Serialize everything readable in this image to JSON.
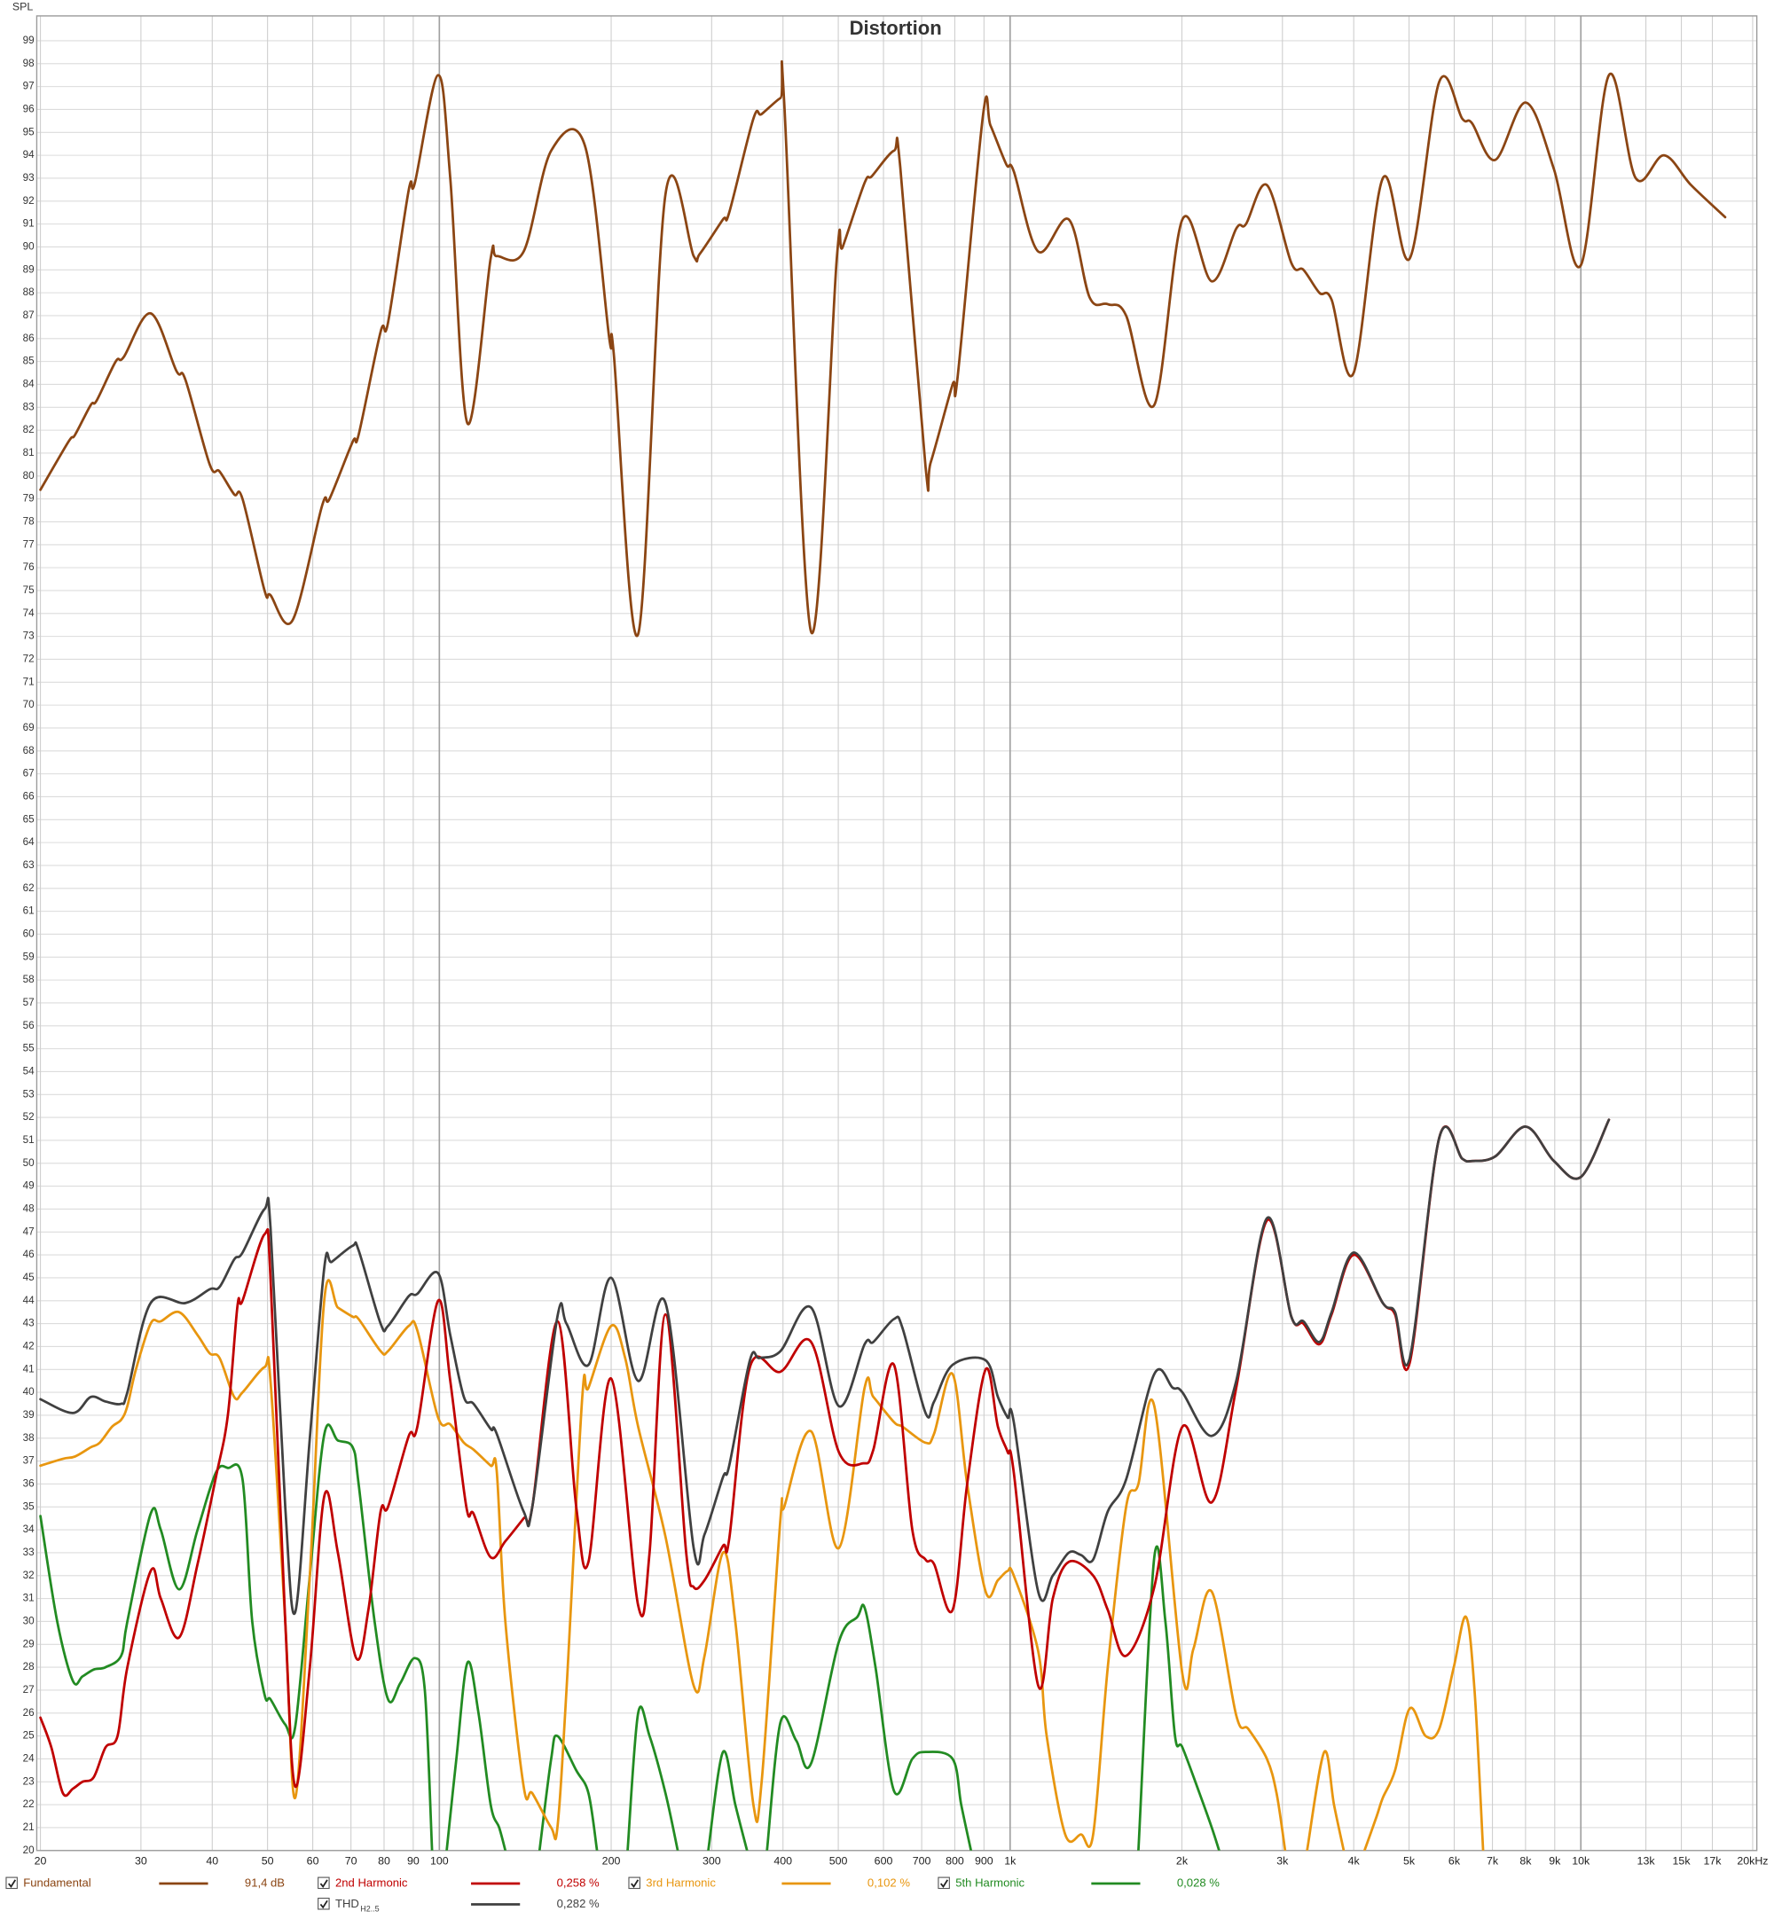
{
  "chart_data": {
    "type": "line",
    "title": "Distortion",
    "y_label": "SPL",
    "x_scale": "log",
    "grid": true,
    "xlim": [
      20,
      20000
    ],
    "ylim": [
      20,
      100
    ],
    "xticks": [
      20,
      30,
      40,
      50,
      60,
      70,
      80,
      90,
      100,
      200,
      300,
      400,
      500,
      600,
      700,
      800,
      900,
      {
        "value": 1000,
        "label": "1k"
      },
      {
        "value": 2000,
        "label": "2k"
      },
      {
        "value": 3000,
        "label": "3k"
      },
      {
        "value": 4000,
        "label": "4k"
      },
      {
        "value": 5000,
        "label": "5k"
      },
      {
        "value": 6000,
        "label": "6k"
      },
      {
        "value": 7000,
        "label": "7k"
      },
      {
        "value": 8000,
        "label": "8k"
      },
      {
        "value": 9000,
        "label": "9k"
      },
      {
        "value": 10000,
        "label": "10k"
      },
      {
        "value": 13000,
        "label": "13k"
      },
      {
        "value": 15000,
        "label": "15k"
      },
      {
        "value": 17000,
        "label": "17k"
      },
      {
        "value": 20000,
        "label": "20kHz"
      }
    ],
    "yticks": [
      20,
      21,
      22,
      23,
      24,
      25,
      26,
      27,
      28,
      29,
      30,
      31,
      32,
      33,
      34,
      35,
      36,
      37,
      38,
      39,
      40,
      41,
      42,
      43,
      44,
      45,
      46,
      47,
      48,
      49,
      50,
      51,
      52,
      53,
      54,
      55,
      56,
      57,
      58,
      59,
      60,
      61,
      62,
      63,
      64,
      65,
      66,
      67,
      68,
      69,
      70,
      71,
      72,
      73,
      74,
      75,
      76,
      77,
      78,
      79,
      80,
      81,
      82,
      83,
      84,
      85,
      86,
      87,
      88,
      89,
      90,
      91,
      92,
      93,
      94,
      95,
      96,
      97,
      98,
      99
    ],
    "series": [
      {
        "name": "Fundamental",
        "color": "#8b4513",
        "legend_value": "91,4 dB",
        "x": [
          20,
          22.4,
          23,
          24.5,
          25.1,
          27.1,
          28,
          31.2,
          34.6,
          35.9,
          39.6,
          41.2,
          43.7,
          45.2,
          49.4,
          50.6,
          55.3,
          62.3,
          64.2,
          70.5,
          72.2,
          78.9,
          81.3,
          88.4,
          90.6,
          99.5,
          104.5,
          112,
          123,
          126,
          140.5,
          157,
          180,
          198.5,
          202,
          223,
          249,
          279,
          286,
          314,
          322,
          355,
          367,
          396,
          402,
          448,
          497,
          509,
          556,
          573,
          626,
          642,
          711,
          726,
          793,
          809,
          897,
          924,
          985,
          1015,
          1120,
          1267,
          1378,
          1483,
          1597,
          1789,
          2004,
          2256,
          2490,
          2590,
          2818,
          3110,
          3266,
          3482,
          3658,
          3998,
          4498,
          5015,
          5646,
          6197,
          6447,
          7080,
          8010,
          8970,
          10000,
          11200,
          12480,
          13990,
          15600,
          17900
        ],
        "values": [
          79.4,
          81.5,
          81.8,
          83.1,
          83.3,
          85,
          85.2,
          87.1,
          84.6,
          84.2,
          80.5,
          80.2,
          79.2,
          79,
          75,
          74.8,
          73.7,
          78.7,
          79,
          81.5,
          81.8,
          86.3,
          86.7,
          92.5,
          92.8,
          97.5,
          93,
          82.3,
          89.5,
          89.6,
          89.8,
          94.2,
          94.4,
          86,
          85.4,
          73.1,
          92.3,
          89.6,
          89.7,
          91.2,
          91.5,
          95.6,
          95.8,
          96.5,
          96.3,
          73.2,
          89.5,
          90,
          92.8,
          93.1,
          94.2,
          93.5,
          80.4,
          80.6,
          84,
          84.3,
          95.8,
          95.3,
          93.6,
          93.3,
          89.8,
          91.2,
          87.8,
          87.5,
          87,
          83.1,
          91.2,
          88.5,
          90.8,
          91,
          92.7,
          89.3,
          89,
          88,
          87.7,
          84.5,
          93,
          89.5,
          97.2,
          95.6,
          95.4,
          93.8,
          96.3,
          93.4,
          89.2,
          97.5,
          93,
          94,
          92.7,
          91.3
        ]
      },
      {
        "name": "2nd Harmonic",
        "color": "#c00000",
        "legend_value": "0,258 %",
        "x": [
          20,
          20.9,
          21.9,
          22.8,
          23.7,
          24.8,
          26,
          27.3,
          28.4,
          31.2,
          32.5,
          35,
          37.7,
          40.6,
          42.6,
          44.3,
          45.2,
          49.4,
          50.6,
          53.7,
          55.9,
          59.3,
          62.9,
          66.4,
          71.5,
          75.1,
          78.9,
          81.3,
          88.4,
          91.5,
          99.5,
          104.5,
          111.5,
          114.8,
          123,
          130.5,
          140.5,
          145.5,
          161,
          173.7,
          182.5,
          200,
          223,
          233.5,
          249,
          270.7,
          279,
          291.5,
          314,
          322,
          350,
          396,
          448,
          501,
          553,
          576,
          626,
          674,
          711,
          736,
          793,
          841,
          906,
          952,
          990,
          1015,
          1120,
          1188,
          1267,
          1398,
          1483,
          1597,
          1789,
          2004,
          2256,
          2490,
          2818,
          3110,
          3266,
          3482,
          3658,
          3998,
          4498,
          4726,
          5015,
          5646,
          6197,
          6447,
          7080,
          8010,
          8970,
          10000,
          11200
        ],
        "values": [
          25.8,
          24.5,
          22.5,
          22.7,
          23,
          23.2,
          24.5,
          25,
          28,
          32.2,
          31,
          29.3,
          32.5,
          36.3,
          39,
          43.8,
          44,
          46.9,
          45,
          30,
          22.8,
          28,
          35.5,
          33,
          28.4,
          30.5,
          34.8,
          35,
          38.1,
          38.5,
          44,
          40.5,
          35,
          34.7,
          32.8,
          33.5,
          34.5,
          35,
          43.1,
          35,
          32.6,
          40.6,
          30.7,
          33,
          43.4,
          33,
          31.5,
          31.8,
          33.3,
          33.6,
          41.1,
          40.9,
          42.2,
          37.4,
          36.9,
          37.5,
          41.2,
          34,
          32.7,
          32.5,
          30.5,
          36,
          41,
          38.5,
          37.4,
          36.5,
          27.2,
          31,
          32.6,
          32,
          30.5,
          28.5,
          31.5,
          38.5,
          35.2,
          40.2,
          47.5,
          43.3,
          43,
          42.1,
          43.4,
          46,
          43.9,
          43.4,
          41.3,
          51.1,
          50.2,
          50.1,
          50.3,
          51.6,
          50.1,
          49.4,
          51.9
        ]
      },
      {
        "name": "3rd Harmonic",
        "color": "#e8960f",
        "legend_value": "0,102 %",
        "x": [
          20,
          21.9,
          23,
          24.5,
          25.4,
          26.7,
          27.7,
          28.4,
          29.4,
          31.2,
          32.5,
          35,
          37.7,
          39.6,
          41.2,
          43.7,
          45.2,
          49.4,
          50.6,
          53.7,
          55.9,
          59.3,
          62.9,
          66.4,
          70.5,
          72.2,
          78.9,
          81.3,
          88.4,
          91.5,
          99.5,
          104.5,
          110.4,
          114.8,
          123,
          126,
          130.5,
          140.5,
          145.5,
          157,
          161,
          167,
          178,
          182.5,
          200,
          211.6,
          223,
          249,
          279,
          291.5,
          314,
          330,
          355,
          367,
          396,
          402,
          448,
          501,
          556,
          576,
          626,
          648,
          711,
          736,
          793,
          841,
          906,
          952,
          990,
          1015,
          1120,
          1159,
          1249,
          1331,
          1398,
          1483,
          1597,
          1678,
          1789,
          2004,
          2095,
          2256,
          2490,
          2616,
          2818,
          2930,
          3033,
          null,
          3314,
          3551,
          3694,
          3842,
          null,
          4178,
          4389,
          4498,
          4726,
          5015,
          5346,
          5646,
          5989,
          6291,
          6512,
          6742
        ],
        "values": [
          36.8,
          37.1,
          37.2,
          37.6,
          37.8,
          38.5,
          38.8,
          39.4,
          41,
          43,
          43.1,
          43.5,
          42.5,
          41.7,
          41.5,
          39.8,
          40,
          41.1,
          40.5,
          30,
          22.3,
          32,
          44.1,
          43.7,
          43.3,
          43.2,
          41.8,
          41.8,
          42.9,
          42.7,
          38.9,
          38.6,
          37.8,
          37.5,
          36.8,
          36.6,
          30,
          22.8,
          22.5,
          21,
          21,
          27,
          39.8,
          40.2,
          42.9,
          41.5,
          38.5,
          33.7,
          27.2,
          28.5,
          33,
          30,
          22,
          23,
          34.5,
          35,
          38.3,
          33.2,
          40.2,
          39.8,
          38.7,
          38.5,
          37.8,
          38.2,
          40.8,
          36,
          31.3,
          31.8,
          32.2,
          32,
          28.7,
          25,
          20.7,
          20.7,
          20.7,
          28,
          35,
          36,
          39.4,
          27.7,
          28.8,
          31.3,
          25.9,
          25.3,
          24,
          22.5,
          20,
          null,
          20,
          24.3,
          22,
          20,
          null,
          20,
          21.5,
          22.3,
          23.5,
          26.2,
          25,
          25.3,
          28,
          30.2,
          27,
          20
        ]
      },
      {
        "name": "5th Harmonic",
        "color": "#228b22",
        "legend_value": "0,028 %",
        "x": [
          20,
          21.4,
          22.8,
          23.7,
          24.8,
          26,
          27.7,
          28.4,
          31.2,
          32.5,
          35,
          37.7,
          40.6,
          42.6,
          45.2,
          47,
          49.4,
          50.6,
          53.7,
          55.9,
          59.3,
          62.9,
          66.4,
          70.5,
          72.2,
          77,
          81.3,
          85.4,
          90.6,
          94.3,
          97.1,
          null,
          103,
          107.1,
          112,
          117.1,
          123,
          127.3,
          130.5,
          null,
          149.8,
          157,
          161,
          173.7,
          182.5,
          188.9,
          null,
          213.7,
          223,
          233.5,
          249,
          261.6,
          null,
          295.9,
          314,
          330,
          346,
          null,
          375,
          396,
          422,
          448,
          501,
          540,
          556,
          581,
          626,
          674,
          711,
          793,
          821,
          854,
          null,
          1678,
          1789,
          1871,
          1945,
          2004,
          2147,
          2256,
          2324
        ],
        "values": [
          34.6,
          30,
          27.4,
          27.6,
          27.9,
          28,
          28.5,
          30,
          34.7,
          34,
          31.4,
          34,
          36.5,
          36.7,
          36.2,
          30,
          26.8,
          26.6,
          25.5,
          25.4,
          32,
          38.2,
          37.9,
          37.6,
          36,
          30,
          26.6,
          27.3,
          28.4,
          27,
          20,
          null,
          20,
          24,
          28.2,
          26,
          22,
          21,
          20,
          null,
          20,
          24,
          25,
          23.5,
          22.5,
          20,
          null,
          20,
          26,
          25,
          22.5,
          20,
          null,
          20,
          24.3,
          22,
          20,
          null,
          20,
          25.6,
          24.8,
          23.8,
          29.1,
          30.2,
          30.6,
          28,
          22.6,
          24,
          24.3,
          24,
          22,
          20,
          null,
          20,
          32.8,
          30,
          25,
          24.5,
          22.5,
          21,
          20
        ]
      },
      {
        "name": "THD",
        "name_subscript": "H2..5",
        "color": "#404040",
        "legend_value": "0,282 %",
        "x": [
          20,
          22.8,
          24.5,
          26,
          27.7,
          28.4,
          31.2,
          35.9,
          39.6,
          41.2,
          43.7,
          45.2,
          49.4,
          50.6,
          53.7,
          55.9,
          59.3,
          62.9,
          64.8,
          70.5,
          72.2,
          78.9,
          81.3,
          88.4,
          91.5,
          99.5,
          104.5,
          110.4,
          114.8,
          123,
          126,
          140.5,
          145.5,
          161,
          167,
          182.5,
          200,
          223,
          249,
          279,
          291.5,
          314,
          322,
          350,
          364,
          396,
          448,
          501,
          556,
          576,
          626,
          648,
          711,
          736,
          793,
          906,
          952,
          990,
          1015,
          1120,
          1188,
          1267,
          1331,
          1398,
          1483,
          1597,
          1789,
          1927,
          2004,
          2256,
          2490,
          2818,
          3110,
          3266,
          3482,
          3658,
          3998,
          4498,
          4726,
          5015,
          5646,
          6197,
          6447,
          7080,
          8010,
          8970,
          10000,
          11200
        ],
        "values": [
          39.7,
          39.1,
          39.8,
          39.6,
          39.5,
          40,
          43.9,
          43.9,
          44.5,
          44.6,
          45.8,
          46.1,
          48,
          47.2,
          35,
          30.4,
          38,
          45.5,
          45.7,
          46.4,
          46.2,
          43,
          42.9,
          44.2,
          44.3,
          45.2,
          42.5,
          39.8,
          39.5,
          38.4,
          38.2,
          34.8,
          35,
          43.3,
          43,
          41.2,
          45,
          40.5,
          43.9,
          33.2,
          33.8,
          36.3,
          36.8,
          41.4,
          41.5,
          41.8,
          43.7,
          39.4,
          42.1,
          42.2,
          43.2,
          42.8,
          39.1,
          39.6,
          41.2,
          41.4,
          39.8,
          38.9,
          38.7,
          31.3,
          32,
          33,
          32.9,
          32.7,
          34.8,
          36.2,
          40.8,
          40.2,
          40,
          38.1,
          40.5,
          47.6,
          43.3,
          43.1,
          42.2,
          43.5,
          46.1,
          43.9,
          43.5,
          41.5,
          51.1,
          50.2,
          50.1,
          50.3,
          51.6,
          50.1,
          49.4,
          51.9
        ]
      }
    ]
  }
}
